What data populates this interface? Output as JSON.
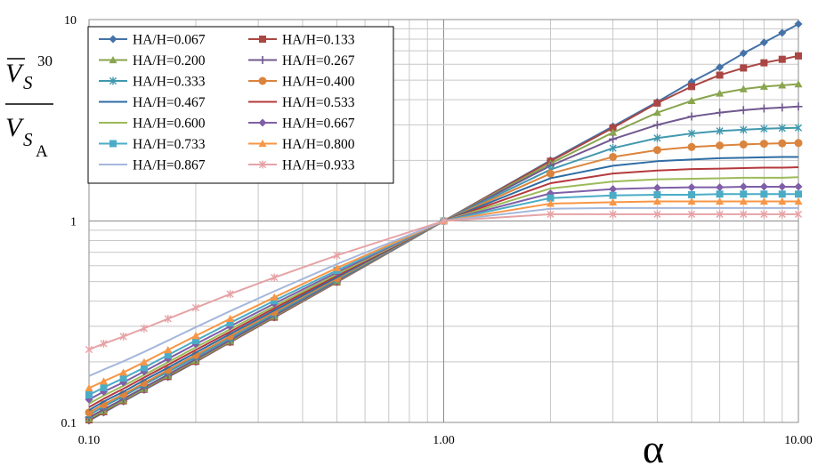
{
  "chart_data": {
    "type": "line",
    "title": "",
    "xlabel": "α",
    "ylabel": {
      "numerator": "V",
      "numerator_sub": "S",
      "numerator_sup": "30",
      "denominator": "V",
      "denominator_sub": "S",
      "denominator_subsub": "A"
    },
    "x_scale": "log",
    "y_scale": "log",
    "xlim": [
      0.1,
      10
    ],
    "ylim": [
      0.1,
      10
    ],
    "x_ticks": [
      "0.10",
      "1.00",
      "10.00"
    ],
    "y_ticks": [
      "0.1",
      "1",
      "10"
    ],
    "grid": "minor-and-major",
    "legend_position": "top-left",
    "x": [
      0.1,
      0.11,
      0.125,
      0.143,
      0.167,
      0.2,
      0.25,
      0.333,
      0.5,
      1,
      2,
      3,
      4,
      5,
      6,
      7,
      8,
      9,
      10
    ],
    "series": [
      {
        "name": "HA/H=0.067",
        "color": "#4572A7",
        "marker": "diamond",
        "values": [
          0.102,
          0.112,
          0.127,
          0.145,
          0.168,
          0.2,
          0.25,
          0.332,
          0.497,
          1,
          2.0,
          2.95,
          3.9,
          4.9,
          5.8,
          6.8,
          7.7,
          8.6,
          9.5
        ]
      },
      {
        "name": "HA/H=0.133",
        "color": "#AA4643",
        "marker": "square",
        "values": [
          0.103,
          0.113,
          0.128,
          0.146,
          0.169,
          0.201,
          0.251,
          0.333,
          0.498,
          1,
          1.98,
          2.9,
          3.85,
          4.65,
          5.3,
          5.75,
          6.1,
          6.35,
          6.6
        ]
      },
      {
        "name": "HA/H=0.200",
        "color": "#89A54E",
        "marker": "triangle",
        "values": [
          0.104,
          0.114,
          0.129,
          0.147,
          0.171,
          0.203,
          0.253,
          0.336,
          0.501,
          1,
          1.93,
          2.75,
          3.45,
          3.95,
          4.3,
          4.52,
          4.65,
          4.72,
          4.78
        ]
      },
      {
        "name": "HA/H=0.267",
        "color": "#71588F",
        "marker": "plus",
        "values": [
          0.106,
          0.116,
          0.131,
          0.149,
          0.173,
          0.206,
          0.256,
          0.34,
          0.505,
          1,
          1.88,
          2.55,
          3.0,
          3.3,
          3.45,
          3.55,
          3.62,
          3.66,
          3.7
        ]
      },
      {
        "name": "HA/H=0.333",
        "color": "#4198AF",
        "marker": "star",
        "values": [
          0.109,
          0.12,
          0.135,
          0.154,
          0.178,
          0.211,
          0.262,
          0.346,
          0.511,
          1,
          1.8,
          2.3,
          2.58,
          2.72,
          2.8,
          2.84,
          2.87,
          2.89,
          2.9
        ]
      },
      {
        "name": "HA/H=0.400",
        "color": "#DB843D",
        "marker": "circle",
        "values": [
          0.112,
          0.123,
          0.138,
          0.157,
          0.182,
          0.216,
          0.268,
          0.353,
          0.518,
          1,
          1.72,
          2.08,
          2.25,
          2.33,
          2.37,
          2.4,
          2.42,
          2.43,
          2.44
        ]
      },
      {
        "name": "HA/H=0.467",
        "color": "#2E6DA4",
        "marker": "none",
        "values": [
          0.115,
          0.127,
          0.142,
          0.162,
          0.187,
          0.222,
          0.275,
          0.36,
          0.526,
          1,
          1.63,
          1.88,
          1.98,
          2.02,
          2.05,
          2.06,
          2.07,
          2.08,
          2.08
        ]
      },
      {
        "name": "HA/H=0.533",
        "color": "#B5393D",
        "marker": "none",
        "values": [
          0.119,
          0.131,
          0.147,
          0.167,
          0.193,
          0.229,
          0.282,
          0.369,
          0.535,
          1,
          1.54,
          1.72,
          1.78,
          1.81,
          1.82,
          1.83,
          1.84,
          1.84,
          1.85
        ]
      },
      {
        "name": "HA/H=0.600",
        "color": "#9BBB59",
        "marker": "none",
        "values": [
          0.124,
          0.136,
          0.152,
          0.172,
          0.199,
          0.236,
          0.29,
          0.378,
          0.545,
          1,
          1.45,
          1.57,
          1.61,
          1.62,
          1.63,
          1.64,
          1.64,
          1.64,
          1.65
        ]
      },
      {
        "name": "HA/H=0.667",
        "color": "#7F5FA8",
        "marker": "diamond",
        "values": [
          0.13,
          0.142,
          0.158,
          0.179,
          0.207,
          0.245,
          0.3,
          0.389,
          0.556,
          1,
          1.37,
          1.44,
          1.46,
          1.47,
          1.47,
          1.48,
          1.48,
          1.48,
          1.48
        ]
      },
      {
        "name": "HA/H=0.733",
        "color": "#4BACC6",
        "marker": "square",
        "values": [
          0.137,
          0.149,
          0.166,
          0.187,
          0.216,
          0.255,
          0.312,
          0.402,
          0.569,
          1,
          1.3,
          1.34,
          1.35,
          1.35,
          1.36,
          1.36,
          1.36,
          1.36,
          1.36
        ]
      },
      {
        "name": "HA/H=0.800",
        "color": "#F79646",
        "marker": "triangle",
        "values": [
          0.148,
          0.16,
          0.177,
          0.199,
          0.229,
          0.269,
          0.327,
          0.418,
          0.585,
          1,
          1.22,
          1.24,
          1.25,
          1.25,
          1.25,
          1.25,
          1.25,
          1.25,
          1.25
        ]
      },
      {
        "name": "HA/H=0.867",
        "color": "#A5B7DC",
        "marker": "none",
        "values": [
          0.17,
          0.183,
          0.201,
          0.224,
          0.255,
          0.297,
          0.357,
          0.448,
          0.611,
          1,
          1.15,
          1.16,
          1.16,
          1.16,
          1.16,
          1.16,
          1.16,
          1.16,
          1.16
        ]
      },
      {
        "name": "HA/H=0.933",
        "color": "#E6A3A6",
        "marker": "star",
        "values": [
          0.23,
          0.246,
          0.267,
          0.293,
          0.327,
          0.371,
          0.434,
          0.524,
          0.675,
          1,
          1.08,
          1.08,
          1.08,
          1.08,
          1.08,
          1.08,
          1.08,
          1.08,
          1.08
        ]
      }
    ]
  }
}
